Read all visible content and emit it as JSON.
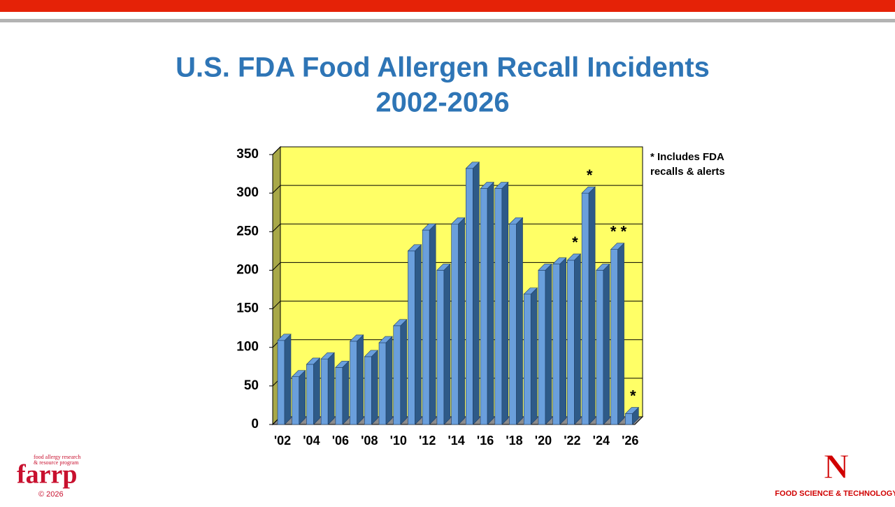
{
  "chart_data": {
    "type": "bar3d",
    "title": "U.S. FDA Food Allergen Recall Incidents",
    "subtitle": "2002-2026",
    "categories": [
      "'02",
      null,
      "'04",
      null,
      "'06",
      null,
      "'08",
      null,
      "'10",
      null,
      "'12",
      null,
      "'14",
      null,
      "'16",
      null,
      "'18",
      null,
      "'20",
      null,
      "'22",
      null,
      "'24",
      null,
      "'26"
    ],
    "values": [
      109,
      62,
      78,
      85,
      74,
      108,
      88,
      106,
      128,
      225,
      252,
      200,
      260,
      332,
      306,
      306,
      260,
      169,
      200,
      208,
      213,
      300,
      200,
      227,
      14
    ],
    "markers": [
      null,
      null,
      null,
      null,
      null,
      null,
      null,
      null,
      null,
      null,
      null,
      null,
      null,
      null,
      null,
      null,
      null,
      null,
      null,
      null,
      "*",
      "*",
      null,
      "* *",
      "*"
    ],
    "footnote": [
      "* Includes FDA",
      "recalls & alerts"
    ],
    "color": "#6a9fdc",
    "side_color": "#2e5a88",
    "background": "#ffff66",
    "ylim": [
      0,
      350
    ],
    "yticks": [
      0,
      50,
      100,
      150,
      200,
      250,
      300,
      350
    ],
    "grid": true
  },
  "footer": {
    "farrp_tagline": [
      "food allergy research",
      "& resource program"
    ],
    "farrp": "farrp",
    "copyright": "© 2026",
    "unl_logo": "N",
    "unl_dept": "FOOD SCIENCE & TECHNOLOGY"
  }
}
